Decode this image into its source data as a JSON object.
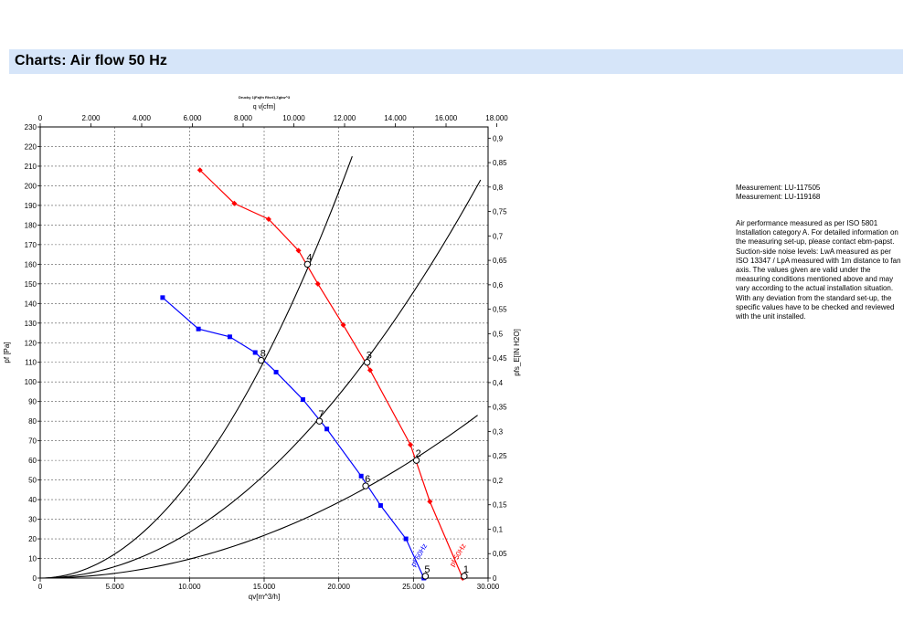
{
  "header": {
    "title": "Charts: Air flow 50 Hz"
  },
  "measurements": [
    "Measurement: LU-117505",
    "Measurement: LU-119168"
  ],
  "description": "Air performance measured as per ISO 5801 Installation category A. For detailed information on the measuring set-up, please contact ebm-papst. Suction-side noise levels: LwA measured as per ISO 13347 / LpA measured with 1m distance to fan axis. The values given are valid under the measuring conditions mentioned above and may vary according to the actual installation situation. With any deviation from the standard set-up, the specific values have to be checked and reviewed with the unit installed.",
  "chart_data": {
    "type": "line",
    "title": "Drucky 1(Fa)fn Rhet1,Zgkw^3",
    "xlabel": "qv[m^3/h]",
    "x2label": "q v[cfm]",
    "ylabel": "pf [Pa]",
    "y2label": "pfs_E[IN H2O]",
    "xlim": [
      0,
      30000
    ],
    "ylim": [
      0,
      230
    ],
    "x2lim": [
      0,
      17657
    ],
    "y2lim": [
      0,
      0.923
    ],
    "x_ticks": [
      0,
      5000,
      10000,
      15000,
      20000,
      25000,
      30000
    ],
    "x_tick_labels": [
      "0",
      "5.000",
      "10.000",
      "15.000",
      "20.000",
      "25.000",
      "30.000"
    ],
    "x2_ticks": [
      0,
      2000,
      4000,
      6000,
      8000,
      10000,
      12000,
      14000,
      16000,
      18000
    ],
    "x2_tick_labels": [
      "0",
      "2.000",
      "4.000",
      "6.000",
      "8.000",
      "10.000",
      "12.000",
      "14.000",
      "16.000",
      "18.000"
    ],
    "y_ticks": [
      0,
      10,
      20,
      30,
      40,
      50,
      60,
      70,
      80,
      90,
      100,
      110,
      120,
      130,
      140,
      150,
      160,
      170,
      180,
      190,
      200,
      210,
      220,
      230
    ],
    "y_tick_labels": [
      "0",
      "10",
      "20",
      "30",
      "40",
      "50",
      "60",
      "70",
      "80",
      "90",
      "100",
      "110",
      "120",
      "130",
      "140",
      "150",
      "160",
      "170",
      "180",
      "190",
      "200",
      "210",
      "220",
      "230"
    ],
    "y2_ticks": [
      0,
      0.05,
      0.1,
      0.15,
      0.2,
      0.25,
      0.3,
      0.35,
      0.4,
      0.45,
      0.5,
      0.55,
      0.6,
      0.65,
      0.7,
      0.75,
      0.8,
      0.85,
      0.9
    ],
    "y2_tick_labels": [
      "0",
      "0,05",
      "0,1",
      "0,15",
      "0,2",
      "0,25",
      "0,3",
      "0,35",
      "0,4",
      "0,45",
      "0,5",
      "0,55",
      "0,6",
      "0,65",
      "0,7",
      "0,75",
      "0,8",
      "0,85",
      "0,9"
    ],
    "grid": true,
    "series": [
      {
        "name": "pf 50Hz",
        "color": "#ff0000",
        "marker": "diamond",
        "x": [
          10700,
          13000,
          15300,
          17300,
          18600,
          20300,
          22100,
          24800,
          26100,
          28300
        ],
        "y": [
          208,
          191,
          183,
          167,
          150,
          129,
          106,
          68,
          39,
          0
        ]
      },
      {
        "name": "pf 50Hz",
        "color": "#0000ff",
        "marker": "square",
        "x": [
          8200,
          10600,
          12700,
          14400,
          15800,
          17600,
          19200,
          21500,
          22800,
          24500,
          25700
        ],
        "y": [
          143,
          127,
          123,
          115,
          105,
          91,
          76,
          52,
          37,
          20,
          0
        ]
      }
    ],
    "system_curves": [
      {
        "color": "#000000",
        "x_end": 20900,
        "y_end": 215
      },
      {
        "color": "#000000",
        "x_end": 29500,
        "y_end": 203
      },
      {
        "color": "#000000",
        "x_end": 29300,
        "y_end": 83
      }
    ],
    "operating_points": [
      {
        "label": "2",
        "x": 25200,
        "y": 60
      },
      {
        "label": "3",
        "x": 21900,
        "y": 110
      },
      {
        "label": "4",
        "x": 17900,
        "y": 160
      },
      {
        "label": "6",
        "x": 21800,
        "y": 47
      },
      {
        "label": "7",
        "x": 18700,
        "y": 80
      },
      {
        "label": "8",
        "x": 14800,
        "y": 111
      },
      {
        "label": "5",
        "x": 25800,
        "y": 1
      },
      {
        "label": "1",
        "x": 28400,
        "y": 1
      }
    ]
  }
}
